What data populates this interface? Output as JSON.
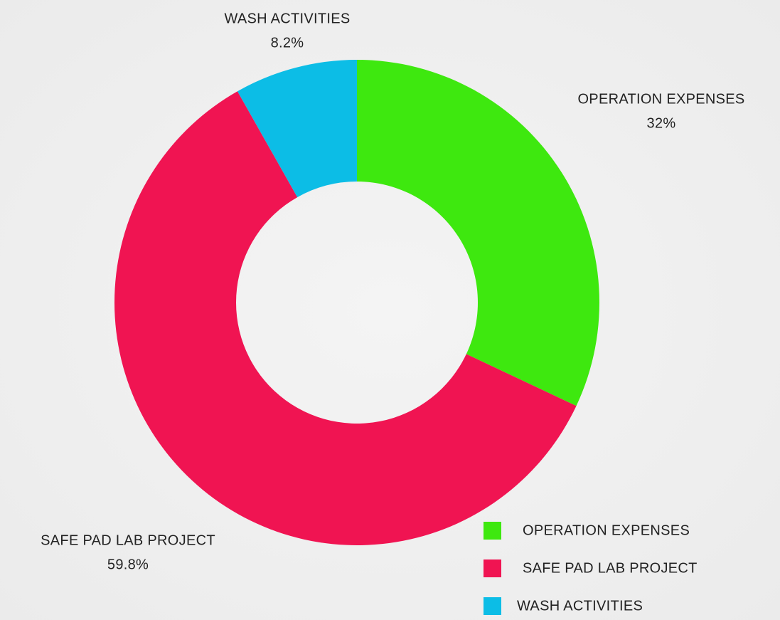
{
  "chart_data": {
    "type": "donut",
    "categories": [
      "OPERATION EXPENSES",
      "SAFE PAD LAB PROJECT",
      "WASH ACTIVITIES"
    ],
    "values": [
      32,
      59.8,
      8.2
    ],
    "value_labels": [
      "32%",
      "59.8%",
      "8.2%"
    ],
    "colors": [
      "#3ee80f",
      "#f01452",
      "#0cbde6"
    ],
    "legend": "bottom-right"
  }
}
